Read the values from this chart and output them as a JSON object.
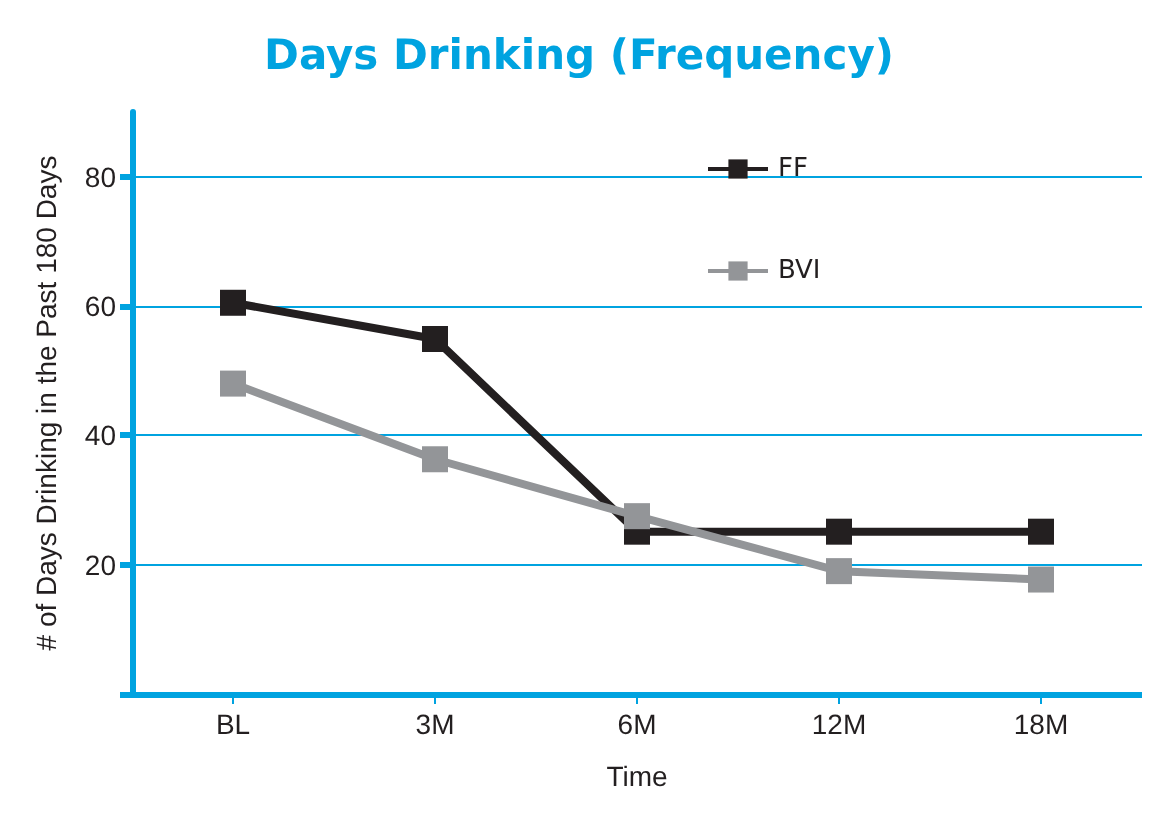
{
  "chart_data": {
    "type": "line",
    "title": "Days Drinking (Frequency)",
    "xlabel": "Time",
    "ylabel": "# of Days Drinking in the Past 180 Days",
    "categories": [
      "BL",
      "3M",
      "6M",
      "12M",
      "18M"
    ],
    "series": [
      {
        "name": "FF",
        "color": "#231f20",
        "values": [
          60.5,
          54.9,
          25.1,
          25.1,
          25.1
        ]
      },
      {
        "name": "BVI",
        "color": "#939598",
        "values": [
          48.0,
          36.3,
          27.5,
          19.0,
          17.7
        ]
      }
    ],
    "ylim": [
      0,
      90
    ],
    "yticks": [
      {
        "value": 0,
        "label": null
      },
      20,
      40,
      60,
      80
    ],
    "grid": "y",
    "legend": "top",
    "marker": "square",
    "line_style": "solid"
  }
}
